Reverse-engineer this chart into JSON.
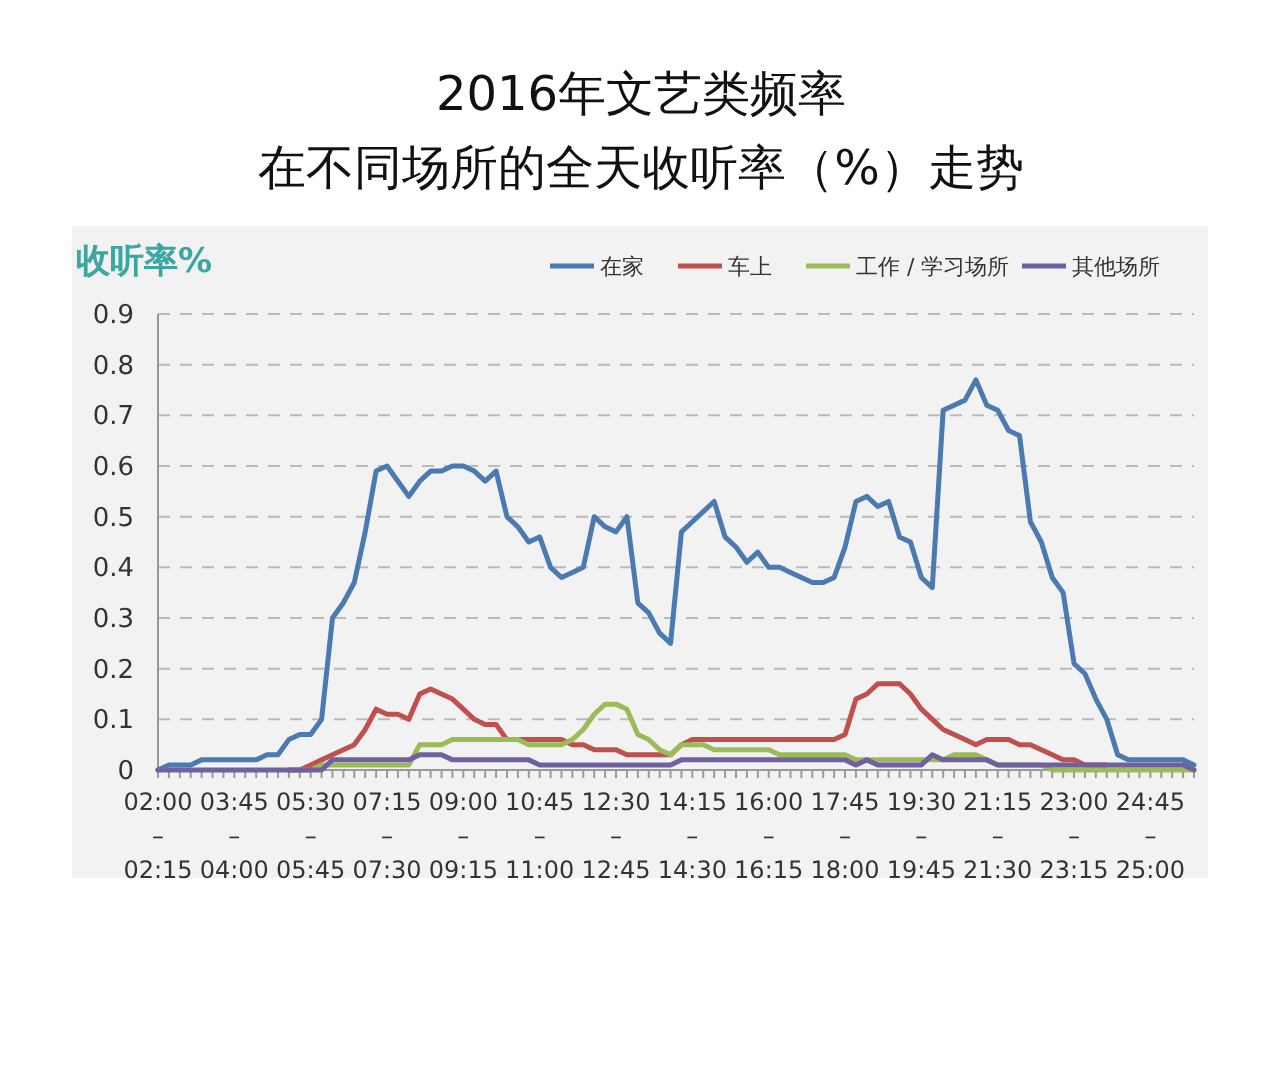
{
  "chart_data": {
    "type": "line",
    "title": "2016年文艺类频率",
    "subtitle": "在不同场所的全天收听率（%）走势",
    "ylabel": "收听率%",
    "categories": [
      "02:00\n–\n02:15",
      null,
      null,
      null,
      null,
      null,
      null,
      "03:45\n–\n04:00",
      null,
      null,
      null,
      null,
      null,
      null,
      "05:30\n–\n05:45",
      null,
      null,
      null,
      null,
      null,
      null,
      "07:15\n–\n07:30",
      null,
      null,
      null,
      null,
      null,
      null,
      "09:00\n–\n09:15",
      null,
      null,
      null,
      null,
      null,
      null,
      "10:45\n–\n11:00",
      null,
      null,
      null,
      null,
      null,
      null,
      "12:30\n–\n12:45",
      null,
      null,
      null,
      null,
      null,
      null,
      "14:15\n–\n14:30",
      null,
      null,
      null,
      null,
      null,
      null,
      "16:00\n–\n16:15",
      null,
      null,
      null,
      null,
      null,
      null,
      "17:45\n–\n18:00",
      null,
      null,
      null,
      null,
      null,
      null,
      "19:30\n–\n19:45",
      null,
      null,
      null,
      null,
      null,
      null,
      "21:15\n–\n21:30",
      null,
      null,
      null,
      null,
      null,
      null,
      "23:00\n–\n23:15",
      null,
      null,
      null,
      null,
      null,
      null,
      "24:45\n–\n25:00",
      null,
      null,
      null,
      null
    ],
    "series": [
      {
        "name": "在家",
        "color": "#4a7ab0",
        "values": [
          0,
          0.01,
          0.01,
          0.01,
          0.02,
          0.02,
          0.02,
          0.02,
          0.02,
          0.02,
          0.03,
          0.03,
          0.06,
          0.07,
          0.07,
          0.1,
          0.3,
          0.33,
          0.37,
          0.47,
          0.59,
          0.6,
          0.57,
          0.54,
          0.57,
          0.59,
          0.59,
          0.6,
          0.6,
          0.59,
          0.57,
          0.59,
          0.5,
          0.48,
          0.45,
          0.46,
          0.4,
          0.38,
          0.39,
          0.4,
          0.5,
          0.48,
          0.47,
          0.5,
          0.33,
          0.31,
          0.27,
          0.25,
          0.47,
          0.49,
          0.51,
          0.53,
          0.46,
          0.44,
          0.41,
          0.43,
          0.4,
          0.4,
          0.39,
          0.38,
          0.37,
          0.37,
          0.38,
          0.44,
          0.53,
          0.54,
          0.52,
          0.53,
          0.46,
          0.45,
          0.38,
          0.36,
          0.71,
          0.72,
          0.73,
          0.77,
          0.72,
          0.71,
          0.67,
          0.66,
          0.49,
          0.45,
          0.38,
          0.35,
          0.21,
          0.19,
          0.14,
          0.1,
          0.03,
          0.02,
          0.02,
          0.02,
          0.02,
          0.02,
          0.02,
          0.01
        ]
      },
      {
        "name": "车上",
        "color": "#c0504d",
        "values": [
          null,
          null,
          null,
          null,
          null,
          null,
          null,
          null,
          null,
          null,
          null,
          null,
          0,
          0,
          0.01,
          0.02,
          0.03,
          0.04,
          0.05,
          0.08,
          0.12,
          0.11,
          0.11,
          0.1,
          0.15,
          0.16,
          0.15,
          0.14,
          0.12,
          0.1,
          0.09,
          0.09,
          0.06,
          0.06,
          0.06,
          0.06,
          0.06,
          0.06,
          0.05,
          0.05,
          0.04,
          0.04,
          0.04,
          0.03,
          0.03,
          0.03,
          0.03,
          0.03,
          0.05,
          0.06,
          0.06,
          0.06,
          0.06,
          0.06,
          0.06,
          0.06,
          0.06,
          0.06,
          0.06,
          0.06,
          0.06,
          0.06,
          0.06,
          0.07,
          0.14,
          0.15,
          0.17,
          0.17,
          0.17,
          0.15,
          0.12,
          0.1,
          0.08,
          0.07,
          0.06,
          0.05,
          0.06,
          0.06,
          0.06,
          0.05,
          0.05,
          0.04,
          0.03,
          0.02,
          0.02,
          0.01,
          0.01,
          0.01,
          null,
          null,
          null,
          null,
          null,
          null,
          null,
          null
        ]
      },
      {
        "name": "工作 / 学习场所",
        "color": "#9bbb59",
        "values": [
          null,
          null,
          null,
          null,
          null,
          null,
          null,
          null,
          null,
          null,
          null,
          null,
          null,
          0,
          0,
          0.01,
          0.01,
          0.01,
          0.01,
          0.01,
          0.01,
          0.01,
          0.01,
          0.01,
          0.05,
          0.05,
          0.05,
          0.06,
          0.06,
          0.06,
          0.06,
          0.06,
          0.06,
          0.06,
          0.05,
          0.05,
          0.05,
          0.05,
          0.06,
          0.08,
          0.11,
          0.13,
          0.13,
          0.12,
          0.07,
          0.06,
          0.04,
          0.03,
          0.05,
          0.05,
          0.05,
          0.04,
          0.04,
          0.04,
          0.04,
          0.04,
          0.04,
          0.03,
          0.03,
          0.03,
          0.03,
          0.03,
          0.03,
          0.03,
          0.02,
          0.02,
          0.02,
          0.02,
          0.02,
          0.02,
          0.02,
          0.02,
          0.02,
          0.03,
          0.03,
          0.03,
          0.02,
          0.01,
          0.01,
          0.01,
          0.01,
          0.01,
          0,
          0,
          0,
          0,
          0,
          0,
          0,
          0,
          0,
          0,
          0,
          0,
          0,
          0
        ]
      },
      {
        "name": "其他场所",
        "color": "#7060a0",
        "values": [
          0,
          0,
          0,
          0,
          0,
          0,
          0,
          0,
          0,
          0,
          0,
          0,
          0,
          0,
          0,
          0,
          0.02,
          0.02,
          0.02,
          0.02,
          0.02,
          0.02,
          0.02,
          0.02,
          0.03,
          0.03,
          0.03,
          0.02,
          0.02,
          0.02,
          0.02,
          0.02,
          0.02,
          0.02,
          0.02,
          0.01,
          0.01,
          0.01,
          0.01,
          0.01,
          0.01,
          0.01,
          0.01,
          0.01,
          0.01,
          0.01,
          0.01,
          0.01,
          0.02,
          0.02,
          0.02,
          0.02,
          0.02,
          0.02,
          0.02,
          0.02,
          0.02,
          0.02,
          0.02,
          0.02,
          0.02,
          0.02,
          0.02,
          0.02,
          0.01,
          0.02,
          0.01,
          0.01,
          0.01,
          0.01,
          0.01,
          0.03,
          0.02,
          0.02,
          0.02,
          0.02,
          0.02,
          0.01,
          0.01,
          0.01,
          0.01,
          0.01,
          0.01,
          0.01,
          0.01,
          0.01,
          0.01,
          0.01,
          0.01,
          0.01,
          0.01,
          0.01,
          0.01,
          0.01,
          0.01,
          0
        ]
      }
    ],
    "ylim": [
      0,
      0.9
    ],
    "yticks": [
      0,
      0.1,
      0.2,
      0.3,
      0.4,
      0.5,
      0.6,
      0.7,
      0.8,
      0.9
    ],
    "grid": "y",
    "legend": "top right",
    "line_style": "solid",
    "marker": "none"
  }
}
